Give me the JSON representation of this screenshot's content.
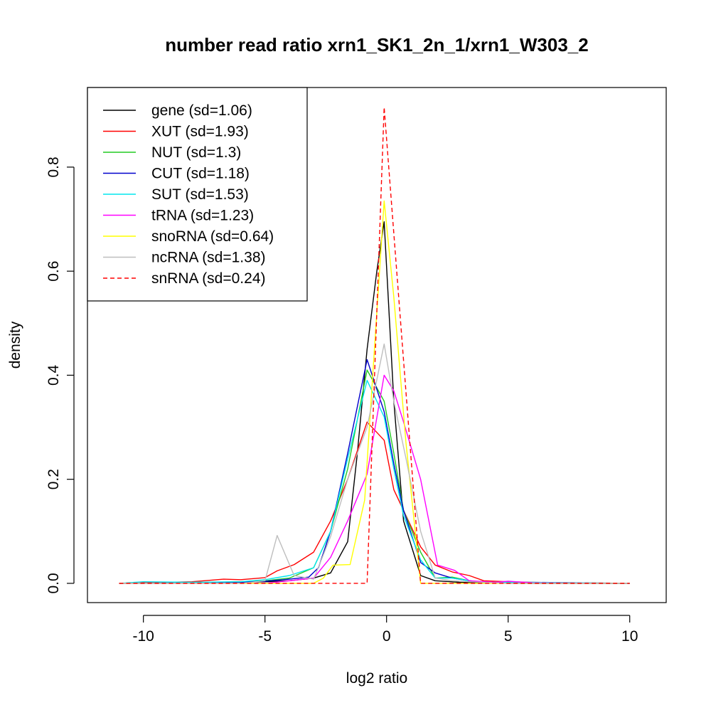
{
  "chart_data": {
    "type": "line",
    "title": "number read ratio xrn1_SK1_2n_1/xrn1_W303_2",
    "xlabel": "log2 ratio",
    "ylabel": "density",
    "xlim": [
      -12.3,
      11.5
    ],
    "ylim": [
      -0.037,
      0.953
    ],
    "xticks": [
      -10,
      -5,
      0,
      5,
      10
    ],
    "xtick_labels": [
      "-10",
      "-5",
      "0",
      "5",
      "10"
    ],
    "yticks": [
      0.0,
      0.2,
      0.4,
      0.6,
      0.8
    ],
    "ytick_labels": [
      "0.0",
      "0.2",
      "0.4",
      "0.6",
      "0.8"
    ],
    "grid": false,
    "legend_position": "top-left",
    "series": [
      {
        "name": "gene (sd=1.06)",
        "color": "#000000",
        "dash": "solid",
        "points": [
          [
            -11,
            0
          ],
          [
            -9,
            0
          ],
          [
            -7,
            0.002
          ],
          [
            -5,
            0.003
          ],
          [
            -4,
            0.005
          ],
          [
            -3,
            0.01
          ],
          [
            -2.3,
            0.02
          ],
          [
            -1.6,
            0.08
          ],
          [
            -1.2,
            0.25
          ],
          [
            -0.8,
            0.45
          ],
          [
            -0.4,
            0.6
          ],
          [
            -0.1,
            0.695
          ],
          [
            0.3,
            0.35
          ],
          [
            0.7,
            0.12
          ],
          [
            1.4,
            0.015
          ],
          [
            2,
            0.005
          ],
          [
            3,
            0.002
          ],
          [
            5,
            0
          ],
          [
            10,
            0
          ]
        ]
      },
      {
        "name": "XUT (sd=1.93)",
        "color": "#ff0000",
        "dash": "solid",
        "points": [
          [
            -11,
            0
          ],
          [
            -10,
            0.001
          ],
          [
            -9,
            0.002
          ],
          [
            -8,
            0.003
          ],
          [
            -7.5,
            0.005
          ],
          [
            -6.7,
            0.008
          ],
          [
            -6,
            0.007
          ],
          [
            -5,
            0.011
          ],
          [
            -4.5,
            0.024
          ],
          [
            -3.8,
            0.036
          ],
          [
            -3,
            0.06
          ],
          [
            -2.3,
            0.12
          ],
          [
            -1.6,
            0.2
          ],
          [
            -0.8,
            0.31
          ],
          [
            -0.1,
            0.275
          ],
          [
            0.3,
            0.18
          ],
          [
            0.7,
            0.14
          ],
          [
            1.4,
            0.07
          ],
          [
            2,
            0.035
          ],
          [
            2.7,
            0.022
          ],
          [
            3.4,
            0.015
          ],
          [
            4,
            0.005
          ],
          [
            5,
            0.003
          ],
          [
            6,
            0.002
          ],
          [
            8,
            0.001
          ],
          [
            10,
            0
          ]
        ]
      },
      {
        "name": "NUT (sd=1.3)",
        "color": "#22cc22",
        "dash": "solid",
        "points": [
          [
            -11,
            0
          ],
          [
            -8,
            0.001
          ],
          [
            -6,
            0.003
          ],
          [
            -5,
            0.005
          ],
          [
            -4,
            0.01
          ],
          [
            -3,
            0.03
          ],
          [
            -2.3,
            0.1
          ],
          [
            -1.6,
            0.22
          ],
          [
            -0.8,
            0.41
          ],
          [
            -0.1,
            0.35
          ],
          [
            0.3,
            0.25
          ],
          [
            0.7,
            0.14
          ],
          [
            1.4,
            0.06
          ],
          [
            2,
            0.01
          ],
          [
            2.7,
            0.012
          ],
          [
            3.4,
            0.005
          ],
          [
            4,
            0.002
          ],
          [
            6,
            0
          ],
          [
            10,
            0
          ]
        ]
      },
      {
        "name": "CUT (sd=1.18)",
        "color": "#0000cc",
        "dash": "solid",
        "points": [
          [
            -11,
            0
          ],
          [
            -8,
            0.001
          ],
          [
            -6,
            0.002
          ],
          [
            -5,
            0.004
          ],
          [
            -4,
            0.008
          ],
          [
            -3.2,
            0.012
          ],
          [
            -2.8,
            0.03
          ],
          [
            -2.3,
            0.1
          ],
          [
            -1.6,
            0.25
          ],
          [
            -0.8,
            0.43
          ],
          [
            -0.1,
            0.33
          ],
          [
            0.3,
            0.23
          ],
          [
            0.7,
            0.14
          ],
          [
            1.4,
            0.04
          ],
          [
            2,
            0.02
          ],
          [
            2.7,
            0.01
          ],
          [
            3.4,
            0.005
          ],
          [
            4,
            0.002
          ],
          [
            6,
            0
          ],
          [
            10,
            0
          ]
        ]
      },
      {
        "name": "SUT (sd=1.53)",
        "color": "#00e5ee",
        "dash": "solid",
        "points": [
          [
            -11,
            0
          ],
          [
            -10,
            0.003
          ],
          [
            -8,
            0.002
          ],
          [
            -6,
            0.003
          ],
          [
            -5,
            0.007
          ],
          [
            -4,
            0.015
          ],
          [
            -3,
            0.03
          ],
          [
            -2.3,
            0.1
          ],
          [
            -1.6,
            0.24
          ],
          [
            -0.8,
            0.39
          ],
          [
            -0.1,
            0.32
          ],
          [
            0.3,
            0.22
          ],
          [
            0.7,
            0.13
          ],
          [
            1.4,
            0.045
          ],
          [
            2,
            0.01
          ],
          [
            2.7,
            0.01
          ],
          [
            3.4,
            0.005
          ],
          [
            4,
            0.002
          ],
          [
            6,
            0.002
          ],
          [
            10,
            0
          ]
        ]
      },
      {
        "name": "tRNA (sd=1.23)",
        "color": "#ff00ff",
        "dash": "solid",
        "points": [
          [
            -11,
            0
          ],
          [
            -5,
            0
          ],
          [
            -4,
            0.005
          ],
          [
            -3,
            0.01
          ],
          [
            -2.3,
            0.05
          ],
          [
            -1.6,
            0.12
          ],
          [
            -0.8,
            0.21
          ],
          [
            -0.1,
            0.4
          ],
          [
            0.3,
            0.37
          ],
          [
            0.7,
            0.31
          ],
          [
            1.4,
            0.2
          ],
          [
            2.1,
            0.035
          ],
          [
            2.8,
            0.025
          ],
          [
            3.4,
            0.005
          ],
          [
            4.5,
            0.002
          ],
          [
            5,
            0.004
          ],
          [
            6,
            0.001
          ],
          [
            10,
            0
          ]
        ]
      },
      {
        "name": "snoRNA (sd=0.64)",
        "color": "#ffff00",
        "dash": "solid",
        "points": [
          [
            -11,
            0
          ],
          [
            -3,
            0
          ],
          [
            -2.6,
            0.01
          ],
          [
            -2.2,
            0.035
          ],
          [
            -1.5,
            0.036
          ],
          [
            -0.9,
            0.16
          ],
          [
            -0.5,
            0.45
          ],
          [
            -0.1,
            0.735
          ],
          [
            0.3,
            0.55
          ],
          [
            0.8,
            0.27
          ],
          [
            1.4,
            0
          ],
          [
            10,
            0
          ]
        ]
      },
      {
        "name": "ncRNA (sd=1.38)",
        "color": "#bebebe",
        "dash": "solid",
        "points": [
          [
            -11,
            0
          ],
          [
            -6,
            0
          ],
          [
            -5,
            0.005
          ],
          [
            -4.5,
            0.092
          ],
          [
            -3.8,
            0.015
          ],
          [
            -3,
            0.008
          ],
          [
            -2.3,
            0.09
          ],
          [
            -1.6,
            0.2
          ],
          [
            -0.8,
            0.3
          ],
          [
            -0.1,
            0.46
          ],
          [
            0.3,
            0.35
          ],
          [
            0.8,
            0.24
          ],
          [
            1.4,
            0.1
          ],
          [
            2,
            0.01
          ],
          [
            2.7,
            0.005
          ],
          [
            3.4,
            0.003
          ],
          [
            5,
            0
          ],
          [
            10,
            0
          ]
        ]
      },
      {
        "name": "snRNA (sd=0.24)",
        "color": "#ff0000",
        "dash": "dashed",
        "points": [
          [
            -11,
            0
          ],
          [
            -0.8,
            0
          ],
          [
            -0.1,
            0.915
          ],
          [
            1.4,
            0
          ],
          [
            10,
            0
          ]
        ]
      }
    ]
  }
}
